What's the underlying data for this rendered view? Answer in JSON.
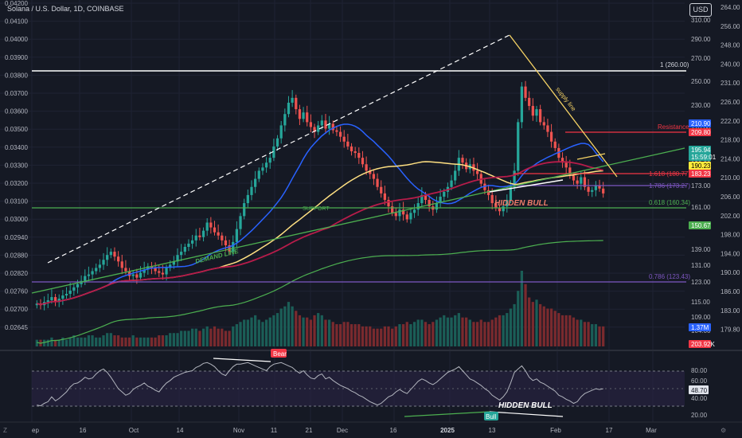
{
  "header": {
    "title": "Solana / U.S. Dollar, 1D, COINBASE",
    "currency_button": "USD"
  },
  "left_scale": [
    "0.04200",
    "0.04100",
    "0.04000",
    "0.03900",
    "0.03800",
    "0.03700",
    "0.03600",
    "0.03500",
    "0.03400",
    "0.03300",
    "0.03200",
    "0.03100",
    "0.03000",
    "0.02940",
    "0.02880",
    "0.02820",
    "0.02760",
    "0.02700",
    "0.02645"
  ],
  "right_scale_mid": [
    "310.00",
    "290.00",
    "270.00",
    "250.00",
    "230.00",
    "210.00",
    "190.00",
    "173.00",
    "161.00",
    "150.00",
    "139.00",
    "131.00",
    "123.00",
    "115.00",
    "109.00",
    "104.00"
  ],
  "right_scale_outer": [
    "264.00",
    "256.00",
    "248.00",
    "240.00",
    "231.00",
    "226.00",
    "222.00",
    "218.00",
    "214.00",
    "210.00",
    "206.00",
    "202.00",
    "198.00",
    "194.00",
    "190.00",
    "186.00",
    "183.00",
    "179.80"
  ],
  "x_axis": [
    "ep",
    "16",
    "Oct",
    "14",
    "Nov",
    "11",
    "21",
    "Dec",
    "16",
    "2025",
    "13",
    "Feb",
    "17",
    "Mar"
  ],
  "corner_labels": {
    "left": "Z",
    "right": "⚙"
  },
  "annotations": {
    "level_1": "1 (260.00)",
    "resistance": "Resistance",
    "supply_line": "supply line",
    "fib_1618": "1.618 (180.77)",
    "fib_1786": "1.786 (173.27)",
    "fib_0618": "0.618 (160.34)",
    "fib_0786": "0.786 (123.43)",
    "support": "SUPPORT",
    "hidden_bull": "HIDDEN BULL",
    "hidden_bull_rsi": "HIDDEN BULL",
    "demand_line": "DEMAND LINE",
    "bear": "Bear",
    "bull": "Bull"
  },
  "price_tags": [
    {
      "text": "210.90",
      "color": "#2962ff"
    },
    {
      "text": "209.80",
      "color": "#f23645"
    },
    {
      "text": "195.94",
      "color": "#26a69a"
    },
    {
      "text": "15:59:01",
      "color": "#26a69a"
    },
    {
      "text": "190.23",
      "color": "#ffeb3b"
    },
    {
      "text": "183.23",
      "color": "#f23645"
    },
    {
      "text": "150.67",
      "color": "#4caf50"
    },
    {
      "text": "1.37M",
      "color": "#2962ff"
    },
    {
      "text": "203.92K",
      "color": "#f23645"
    }
  ],
  "rsi": {
    "scale": [
      "80.00",
      "60.00",
      "48.70",
      "40.00",
      "20.00"
    ],
    "value_tag": "48.70"
  },
  "colors": {
    "up": "#26a69a",
    "down": "#ef5350",
    "ema_blue": "#2962ff",
    "ema_yellow": "#ffe082",
    "ema_red": "#b71c4a",
    "ema_green": "#4caf50",
    "fib_purple": "#7e57c2",
    "supply": "#f6d365"
  },
  "chart_data": {
    "type": "candlestick",
    "title": "Solana / U.S. Dollar, 1D, COINBASE",
    "y_axis": "price (USD)",
    "ylim": [
      104,
      310
    ],
    "horizontal_levels": [
      {
        "label": "1 (260.00)",
        "value": 260.0
      },
      {
        "label": "1.618 (180.77)",
        "value": 180.77
      },
      {
        "label": "1.786 (173.27)",
        "value": 173.27
      },
      {
        "label": "0.618 (160.34)",
        "value": 160.34
      },
      {
        "label": "0.786 (123.43)",
        "value": 123.43
      },
      {
        "label": "Resistance",
        "value": 209.8
      }
    ],
    "last_price": 195.94,
    "ohlc_close_approx": [
      128,
      127,
      129,
      130,
      132,
      129,
      131,
      133,
      134,
      136,
      138,
      140,
      142,
      145,
      146,
      148,
      150,
      152,
      155,
      158,
      160,
      157,
      154,
      150,
      148,
      145,
      146,
      144,
      147,
      149,
      151,
      150,
      148,
      147,
      146,
      150,
      152,
      154,
      158,
      160,
      163,
      165,
      167,
      170,
      169,
      173,
      178,
      175,
      172,
      170,
      167,
      164,
      160,
      166,
      174,
      182,
      190,
      195,
      200,
      205,
      210,
      212,
      215,
      218,
      225,
      230,
      238,
      245,
      252,
      255,
      248,
      242,
      246,
      240,
      237,
      234,
      238,
      241,
      236,
      239,
      235,
      234,
      231,
      228,
      225,
      222,
      221,
      218,
      214,
      210,
      208,
      205,
      200,
      196,
      192,
      188,
      184,
      182,
      186,
      183,
      180,
      184,
      186,
      190,
      195,
      192,
      188,
      186,
      190,
      194,
      197,
      200,
      204,
      210,
      218,
      215,
      211,
      214,
      210,
      208,
      202,
      198,
      195,
      190,
      187,
      185,
      188,
      192,
      200,
      210,
      240,
      262,
      255,
      250,
      244,
      248,
      240,
      238,
      234,
      228,
      224,
      218,
      215,
      212,
      207,
      204,
      202,
      206,
      200,
      197,
      198,
      201,
      199,
      196
    ],
    "volume_approx": [
      3,
      3,
      3,
      3,
      4,
      3,
      3,
      4,
      3,
      4,
      5,
      4,
      4,
      4,
      5,
      5,
      4,
      4,
      5,
      6,
      6,
      5,
      5,
      4,
      4,
      4,
      5,
      4,
      4,
      4,
      4,
      4,
      4,
      5,
      5,
      5,
      6,
      6,
      6,
      7,
      7,
      7,
      8,
      8,
      7,
      8,
      9,
      8,
      9,
      8,
      8,
      7,
      7,
      9,
      10,
      11,
      12,
      12,
      13,
      14,
      12,
      11,
      12,
      13,
      14,
      15,
      17,
      18,
      20,
      18,
      16,
      14,
      13,
      13,
      12,
      14,
      15,
      14,
      12,
      12,
      11,
      10,
      10,
      11,
      11,
      10,
      10,
      10,
      9,
      9,
      9,
      8,
      8,
      8,
      9,
      9,
      8,
      9,
      10,
      10,
      11,
      10,
      11,
      12,
      12,
      11,
      10,
      11,
      12,
      13,
      14,
      13,
      13,
      14,
      15,
      13,
      13,
      12,
      11,
      11,
      12,
      11,
      11,
      12,
      13,
      14,
      14,
      15,
      17,
      19,
      25,
      34,
      28,
      22,
      20,
      21,
      19,
      18,
      17,
      17,
      16,
      15,
      14,
      14,
      14,
      13,
      12,
      12,
      11,
      11,
      10,
      10,
      9,
      9
    ],
    "rsi_approx": [
      28,
      27,
      30,
      32,
      38,
      33,
      36,
      40,
      44,
      50,
      54,
      55,
      58,
      62,
      60,
      61,
      66,
      70,
      72,
      68,
      62,
      55,
      48,
      44,
      40,
      42,
      47,
      50,
      52,
      55,
      51,
      49,
      46,
      44,
      50,
      55,
      58,
      62,
      64,
      66,
      68,
      69,
      70,
      74,
      76,
      79,
      80,
      78,
      75,
      70,
      66,
      64,
      70,
      75,
      78,
      78,
      79,
      80,
      78,
      76,
      74,
      72,
      70,
      75,
      78,
      79,
      80,
      78,
      76,
      74,
      70,
      67,
      70,
      65,
      61,
      60,
      64,
      66,
      60,
      62,
      58,
      55,
      52,
      50,
      48,
      45,
      43,
      40,
      38,
      35,
      32,
      30,
      28,
      30,
      34,
      38,
      40,
      44,
      47,
      44,
      42,
      47,
      52,
      57,
      60,
      58,
      55,
      53,
      56,
      60,
      64,
      68,
      70,
      72,
      75,
      70,
      65,
      60,
      58,
      55,
      52,
      48,
      45,
      40,
      37,
      34,
      38,
      44,
      55,
      68,
      72,
      76,
      70,
      62,
      58,
      60,
      56,
      54,
      51,
      48,
      45,
      40,
      38,
      35,
      33,
      30,
      32,
      38,
      42,
      44,
      46,
      48,
      47,
      48
    ]
  }
}
